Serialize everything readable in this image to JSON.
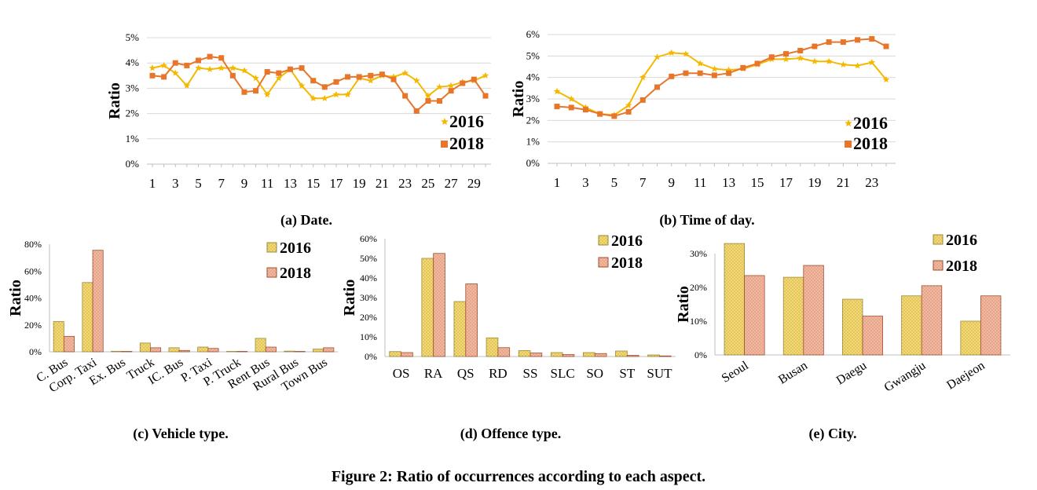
{
  "figure_caption": "Figure 2: Ratio of occurrences according to each aspect.",
  "colors": {
    "series_2016": "#f5b800",
    "series_2018": "#e8762a",
    "bar_2016": "#f3d878",
    "bar_2016_edge": "#9a8a3a",
    "bar_2018": "#f0b8a0",
    "bar_2018_edge": "#a05030",
    "grid": "#d9d9d9",
    "axis": "#bfbfbf"
  },
  "chart_data": [
    {
      "id": "date",
      "type": "line",
      "caption": "(a) Date.",
      "ylabel": "Ratio",
      "ylim": [
        0,
        5
      ],
      "yticks": [
        0,
        1,
        2,
        3,
        4,
        5
      ],
      "ytick_labels": [
        "0%",
        "1%",
        "2%",
        "3%",
        "4%",
        "5%"
      ],
      "x": [
        1,
        2,
        3,
        4,
        5,
        6,
        7,
        8,
        9,
        10,
        11,
        12,
        13,
        14,
        15,
        16,
        17,
        18,
        19,
        20,
        21,
        22,
        23,
        24,
        25,
        26,
        27,
        28,
        29,
        30
      ],
      "xtick_labels": [
        "1",
        "3",
        "5",
        "7",
        "9",
        "11",
        "13",
        "15",
        "17",
        "19",
        "21",
        "23",
        "25",
        "27",
        "29"
      ],
      "legend": [
        "2016",
        "2018"
      ],
      "legend_position": "bottom-right",
      "grid": true,
      "series": [
        {
          "name": "2016",
          "marker": "star",
          "values": [
            3.8,
            3.9,
            3.6,
            3.1,
            3.8,
            3.75,
            3.8,
            3.8,
            3.7,
            3.4,
            2.75,
            3.4,
            3.75,
            3.1,
            2.6,
            2.6,
            2.75,
            2.75,
            3.4,
            3.3,
            3.5,
            3.45,
            3.6,
            3.3,
            2.7,
            3.05,
            3.1,
            3.25,
            3.3,
            3.5
          ]
        },
        {
          "name": "2018",
          "marker": "square",
          "values": [
            3.5,
            3.45,
            4.0,
            3.9,
            4.1,
            4.25,
            4.2,
            3.5,
            2.85,
            2.9,
            3.65,
            3.6,
            3.75,
            3.8,
            3.3,
            3.05,
            3.25,
            3.45,
            3.45,
            3.5,
            3.55,
            3.35,
            2.7,
            2.1,
            2.5,
            2.5,
            2.9,
            3.2,
            3.35,
            2.7
          ]
        }
      ]
    },
    {
      "id": "time",
      "type": "line",
      "caption": "(b) Time of day.",
      "ylabel": "Ratio",
      "ylim": [
        0,
        6
      ],
      "yticks": [
        0,
        1,
        2,
        3,
        4,
        5,
        6
      ],
      "ytick_labels": [
        "0%",
        "1%",
        "2%",
        "3%",
        "4%",
        "5%",
        "6%"
      ],
      "x": [
        1,
        2,
        3,
        4,
        5,
        6,
        7,
        8,
        9,
        10,
        11,
        12,
        13,
        14,
        15,
        16,
        17,
        18,
        19,
        20,
        21,
        22,
        23,
        24
      ],
      "xtick_labels": [
        "1",
        "3",
        "5",
        "7",
        "9",
        "11",
        "13",
        "15",
        "17",
        "19",
        "21",
        "23"
      ],
      "legend": [
        "2016",
        "2018"
      ],
      "legend_position": "bottom-right",
      "grid": true,
      "series": [
        {
          "name": "2016",
          "marker": "star",
          "values": [
            3.35,
            3.0,
            2.6,
            2.3,
            2.25,
            2.7,
            4.0,
            4.95,
            5.15,
            5.1,
            4.65,
            4.4,
            4.35,
            4.4,
            4.6,
            4.85,
            4.85,
            4.9,
            4.75,
            4.75,
            4.6,
            4.55,
            4.7,
            3.9
          ]
        },
        {
          "name": "2018",
          "marker": "square",
          "values": [
            2.65,
            2.6,
            2.5,
            2.3,
            2.2,
            2.4,
            2.95,
            3.55,
            4.05,
            4.2,
            4.2,
            4.1,
            4.2,
            4.45,
            4.65,
            4.95,
            5.1,
            5.25,
            5.45,
            5.65,
            5.65,
            5.75,
            5.8,
            5.45
          ]
        }
      ]
    },
    {
      "id": "vehicle",
      "type": "bar",
      "caption": "(c) Vehicle type.",
      "ylabel": "Ratio",
      "ylim": [
        0,
        80
      ],
      "yticks": [
        0,
        20,
        40,
        60,
        80
      ],
      "ytick_labels": [
        "0%",
        "20%",
        "40%",
        "60%",
        "80%"
      ],
      "categories": [
        "C. Bus",
        "Corp. Taxi",
        "Ex. Bus",
        "Truck",
        "IC. Bus",
        "P. Taxi",
        "P. Truck",
        "Rent Bus",
        "Rural Bus",
        "Town Bus"
      ],
      "legend": [
        "2016",
        "2018"
      ],
      "legend_position": "top-right",
      "grid": false,
      "series": [
        {
          "name": "2016",
          "values": [
            22.5,
            51.5,
            0.4,
            6.5,
            3,
            3.5,
            0.3,
            10,
            0.5,
            2
          ]
        },
        {
          "name": "2018",
          "values": [
            11.5,
            75.5,
            0.3,
            3,
            1,
            2.5,
            0.3,
            3.5,
            0.3,
            3
          ]
        }
      ]
    },
    {
      "id": "offence",
      "type": "bar",
      "caption": "(d) Offence type.",
      "ylabel": "Ratio",
      "ylim": [
        0,
        60
      ],
      "yticks": [
        0,
        10,
        20,
        30,
        40,
        50,
        60
      ],
      "ytick_labels": [
        "0%",
        "10%",
        "20%",
        "30%",
        "40%",
        "50%",
        "60%"
      ],
      "categories": [
        "OS",
        "RA",
        "QS",
        "RD",
        "SS",
        "SLC",
        "SO",
        "ST",
        "SUT"
      ],
      "legend": [
        "2016",
        "2018"
      ],
      "legend_position": "top-right",
      "grid": false,
      "series": [
        {
          "name": "2016",
          "values": [
            2.5,
            50,
            28,
            9.5,
            3,
            2,
            2,
            2.8,
            0.8
          ]
        },
        {
          "name": "2018",
          "values": [
            2,
            52.5,
            37,
            4.5,
            1.8,
            1,
            1.5,
            0.6,
            0.3
          ]
        }
      ]
    },
    {
      "id": "city",
      "type": "bar",
      "caption": "(e) City.",
      "ylabel": "Ratio",
      "ylim": [
        0,
        30
      ],
      "yticks": [
        0,
        10,
        20,
        30
      ],
      "ytick_labels": [
        "0%",
        "10%",
        "20%",
        "30%"
      ],
      "categories": [
        "Seoul",
        "Busan",
        "Daegu",
        "Gwangju",
        "Daejeon"
      ],
      "legend": [
        "2016",
        "2018"
      ],
      "legend_position": "top-right",
      "grid": false,
      "series": [
        {
          "name": "2016",
          "values": [
            33,
            23,
            16.5,
            17.5,
            10
          ]
        },
        {
          "name": "2018",
          "values": [
            23.5,
            26.5,
            11.5,
            20.5,
            17.5
          ]
        }
      ]
    }
  ]
}
